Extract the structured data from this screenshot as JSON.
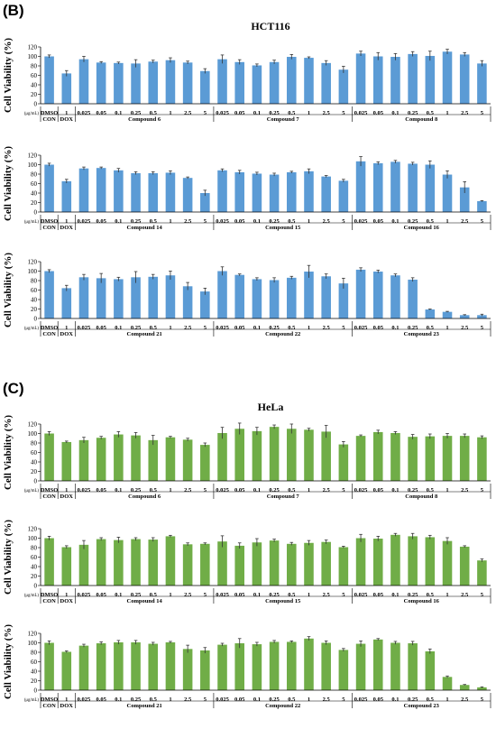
{
  "figure": {
    "panels": [
      {
        "letter": "(B)",
        "title": "HCT116",
        "color": "#5b9bd5"
      },
      {
        "letter": "(C)",
        "title": "HeLa",
        "color": "#70ad47"
      }
    ],
    "ylabel": "Cell Viability (%)",
    "unit_label": "(μg/mL)",
    "yticks": [
      "0",
      "20",
      "40",
      "60",
      "80",
      "100",
      "120"
    ],
    "x_tick_labels": [
      "DMSO",
      "1",
      "0.025",
      "0.05",
      "0.1",
      "0.25",
      "0.5",
      "1",
      "2.5",
      "5",
      "0.025",
      "0.05",
      "0.1",
      "0.25",
      "0.5",
      "1",
      "2.5",
      "5",
      "0.025",
      "0.05",
      "0.1",
      "0.25",
      "0.5",
      "1",
      "2.5",
      "5"
    ],
    "control_labels": [
      "CON",
      "DOX"
    ]
  },
  "chart_data": [
    {
      "type": "bar",
      "panel": "(B)",
      "title": "HCT116",
      "ylabel": "Cell Viability (%)",
      "ylim": [
        0,
        120
      ],
      "color": "#5b9bd5",
      "groups": [
        "CON",
        "DOX",
        "Compound 6",
        "Compound 7",
        "Compound 8"
      ],
      "categories": [
        "DMSO",
        "1",
        "0.025",
        "0.05",
        "0.1",
        "0.25",
        "0.5",
        "1",
        "2.5",
        "5",
        "0.025",
        "0.05",
        "0.1",
        "0.25",
        "0.5",
        "1",
        "2.5",
        "5",
        "0.025",
        "0.05",
        "0.1",
        "0.25",
        "0.5",
        "1",
        "2.5",
        "5"
      ],
      "values": [
        100,
        64,
        94,
        87,
        86,
        85,
        89,
        92,
        87,
        69,
        94,
        88,
        81,
        88,
        99,
        97,
        86,
        72,
        106,
        100,
        99,
        105,
        101,
        110,
        104,
        85
      ],
      "errors": [
        3,
        6,
        6,
        2,
        2,
        8,
        3,
        5,
        3,
        5,
        9,
        5,
        3,
        4,
        5,
        2,
        5,
        7,
        5,
        8,
        7,
        5,
        10,
        5,
        4,
        6
      ]
    },
    {
      "type": "bar",
      "panel": "(B)",
      "title": "HCT116",
      "ylabel": "Cell Viability (%)",
      "ylim": [
        0,
        120
      ],
      "color": "#5b9bd5",
      "groups": [
        "CON",
        "DOX",
        "Compound 14",
        "Compound 15",
        "Compound 16"
      ],
      "categories": [
        "DMSO",
        "1",
        "0.025",
        "0.05",
        "0.1",
        "0.25",
        "0.5",
        "1",
        "2.5",
        "5",
        "0.025",
        "0.05",
        "0.1",
        "0.25",
        "0.5",
        "1",
        "2.5",
        "5",
        "0.025",
        "0.05",
        "0.1",
        "0.25",
        "0.5",
        "1",
        "2.5",
        "5"
      ],
      "values": [
        100,
        65,
        92,
        93,
        88,
        82,
        82,
        83,
        72,
        40,
        88,
        84,
        81,
        79,
        84,
        86,
        75,
        66,
        107,
        103,
        106,
        102,
        100,
        79,
        52,
        23
      ],
      "errors": [
        3,
        4,
        3,
        2,
        4,
        3,
        3,
        4,
        2,
        6,
        3,
        4,
        3,
        3,
        2,
        5,
        2,
        3,
        10,
        3,
        3,
        3,
        8,
        8,
        12,
        1
      ]
    },
    {
      "type": "bar",
      "panel": "(B)",
      "title": "HCT116",
      "ylabel": "Cell Viability (%)",
      "ylim": [
        0,
        120
      ],
      "color": "#5b9bd5",
      "groups": [
        "CON",
        "DOX",
        "Compound 21",
        "Compound 22",
        "Compound 23"
      ],
      "categories": [
        "DMSO",
        "1",
        "0.025",
        "0.05",
        "0.1",
        "0.25",
        "0.5",
        "1",
        "2.5",
        "5",
        "0.025",
        "0.05",
        "0.1",
        "0.25",
        "0.5",
        "1",
        "2.5",
        "5",
        "0.025",
        "0.05",
        "0.1",
        "0.25",
        "0.5",
        "1",
        "2.5",
        "5"
      ],
      "values": [
        100,
        64,
        87,
        85,
        83,
        87,
        88,
        91,
        68,
        57,
        100,
        92,
        83,
        81,
        86,
        99,
        89,
        74,
        103,
        99,
        91,
        82,
        19,
        14,
        7,
        7
      ],
      "errors": [
        3,
        6,
        6,
        10,
        4,
        12,
        5,
        9,
        8,
        7,
        9,
        2,
        3,
        5,
        3,
        13,
        5,
        11,
        4,
        3,
        3,
        4,
        1,
        1,
        1,
        2
      ]
    },
    {
      "type": "bar",
      "panel": "(C)",
      "title": "HeLa",
      "ylabel": "Cell Viability (%)",
      "ylim": [
        0,
        120
      ],
      "color": "#70ad47",
      "groups": [
        "CON",
        "DOX",
        "Compound 6",
        "Compound 7",
        "Compound 8"
      ],
      "categories": [
        "DMSO",
        "1",
        "0.025",
        "0.05",
        "0.1",
        "0.25",
        "0.5",
        "1",
        "2.5",
        "5",
        "0.025",
        "0.05",
        "0.1",
        "0.25",
        "0.5",
        "1",
        "2.5",
        "5",
        "0.025",
        "0.05",
        "0.1",
        "0.25",
        "0.5",
        "1",
        "2.5",
        "5"
      ],
      "values": [
        100,
        82,
        86,
        91,
        98,
        96,
        86,
        92,
        87,
        76,
        101,
        110,
        105,
        114,
        110,
        108,
        104,
        77,
        95,
        103,
        101,
        93,
        94,
        95,
        95,
        92
      ],
      "errors": [
        4,
        2,
        6,
        3,
        6,
        6,
        10,
        2,
        3,
        4,
        12,
        12,
        8,
        4,
        10,
        3,
        13,
        6,
        2,
        4,
        3,
        5,
        5,
        5,
        4,
        3
      ]
    },
    {
      "type": "bar",
      "panel": "(C)",
      "title": "HeLa",
      "ylabel": "Cell Viability (%)",
      "ylim": [
        0,
        120
      ],
      "color": "#70ad47",
      "groups": [
        "CON",
        "DOX",
        "Compound 14",
        "Compound 15",
        "Compound 16"
      ],
      "categories": [
        "DMSO",
        "1",
        "0.025",
        "0.05",
        "0.1",
        "0.25",
        "0.5",
        "1",
        "2.5",
        "5",
        "0.025",
        "0.05",
        "0.1",
        "0.25",
        "0.5",
        "1",
        "2.5",
        "5",
        "0.025",
        "0.05",
        "0.1",
        "0.25",
        "0.5",
        "1",
        "2.5",
        "5"
      ],
      "values": [
        100,
        81,
        86,
        98,
        96,
        98,
        97,
        104,
        87,
        88,
        93,
        84,
        91,
        95,
        88,
        90,
        92,
        81,
        100,
        99,
        107,
        104,
        102,
        94,
        82,
        53
      ],
      "errors": [
        4,
        3,
        9,
        3,
        6,
        3,
        4,
        2,
        3,
        2,
        12,
        6,
        8,
        3,
        3,
        5,
        4,
        2,
        8,
        5,
        3,
        6,
        4,
        7,
        2,
        3
      ]
    },
    {
      "type": "bar",
      "panel": "(C)",
      "title": "HeLa",
      "ylabel": "Cell Viability (%)",
      "ylim": [
        0,
        120
      ],
      "color": "#70ad47",
      "groups": [
        "CON",
        "DOX",
        "Compound 21",
        "Compound 22",
        "Compound 23"
      ],
      "categories": [
        "DMSO",
        "1",
        "0.025",
        "0.05",
        "0.1",
        "0.25",
        "0.5",
        "1",
        "2.5",
        "5",
        "0.025",
        "0.05",
        "0.1",
        "0.25",
        "0.5",
        "1",
        "2.5",
        "5",
        "0.025",
        "0.05",
        "0.1",
        "0.25",
        "0.5",
        "1",
        "2.5",
        "5"
      ],
      "values": [
        100,
        81,
        94,
        99,
        101,
        101,
        98,
        101,
        87,
        84,
        96,
        99,
        97,
        102,
        102,
        109,
        100,
        85,
        98,
        107,
        100,
        99,
        82,
        28,
        11,
        6
      ],
      "errors": [
        4,
        2,
        3,
        3,
        4,
        4,
        3,
        2,
        8,
        6,
        3,
        10,
        4,
        3,
        2,
        4,
        4,
        3,
        6,
        2,
        3,
        4,
        5,
        2,
        1,
        1
      ]
    }
  ]
}
